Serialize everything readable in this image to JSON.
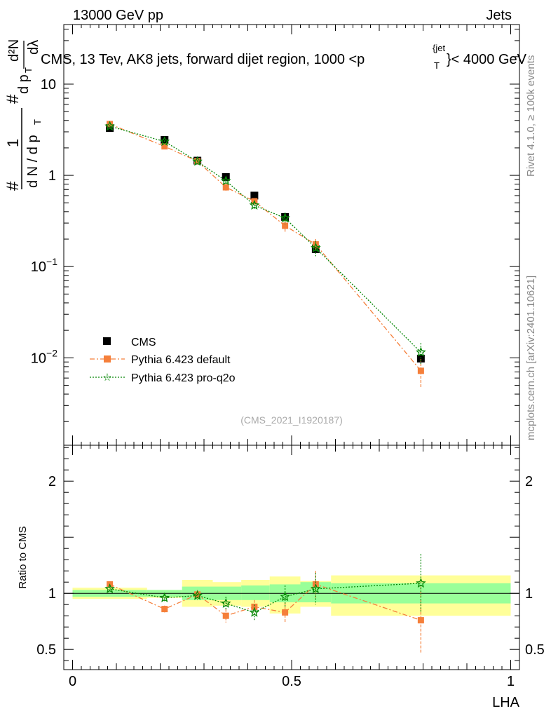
{
  "header": {
    "left": "13000 GeV pp",
    "right": "Jets"
  },
  "title": {
    "main": "CMS, 13 Tev, AK8 jets, forward dijet region, 1000 <p",
    "sub_t": "T",
    "sup_jet": "{jet",
    "tail": "}< 4000 GeV"
  },
  "side": {
    "rivet": "Rivet 4.1.0, ≥ 100k events",
    "mcplots": "mcplots.cern.ch [arXiv:2401.10621]"
  },
  "watermark": "(CMS_2021_I1920187)",
  "ylabel_top": {
    "hash": "#",
    "one": "1",
    "dn": "d N / d p",
    "dn_sub": "T",
    "hash2": "#",
    "dp": "d p",
    "dp_sub": "T",
    "d2n": "d²N",
    "dlambda": "dλ"
  },
  "ylabel_bottom": "Ratio to CMS",
  "xlabel": "LHA",
  "colors": {
    "data": "#000000",
    "default": "#f57f3a",
    "proq2o": "#068806",
    "band_inner": "#99ff99",
    "band_outer": "#ffff99"
  },
  "chart_data": [
    {
      "type": "scatter",
      "title": "CMS, 13 TeV, AK8 jets, forward dijet region, 1000 < pT jet < 4000 GeV",
      "yscale": "log",
      "xlim": [
        -0.02,
        1.02
      ],
      "ylim": [
        0.0011,
        45
      ],
      "y_ticks": [
        {
          "v": 0.01,
          "base": "10",
          "exp": "−2"
        },
        {
          "v": 0.1,
          "base": "10",
          "exp": "−1"
        },
        {
          "v": 1,
          "base": "1",
          "exp": ""
        },
        {
          "v": 10,
          "base": "10",
          "exp": ""
        }
      ],
      "legend_position": "lower-left",
      "series": [
        {
          "name": "CMS",
          "key": "data",
          "x": [
            0.085,
            0.21,
            0.285,
            0.35,
            0.415,
            0.485,
            0.555,
            0.795
          ],
          "y": [
            3.3,
            2.45,
            1.45,
            0.96,
            0.6,
            0.35,
            0.155,
            0.0098
          ],
          "yerr": [
            0,
            0,
            0,
            0,
            0,
            0,
            0,
            0
          ]
        },
        {
          "name": "Pythia 6.423 default",
          "key": "default",
          "x": [
            0.085,
            0.21,
            0.285,
            0.35,
            0.415,
            0.485,
            0.555,
            0.795
          ],
          "y": [
            3.65,
            2.08,
            1.43,
            0.74,
            0.52,
            0.28,
            0.175,
            0.0072
          ],
          "yerr": [
            0.1,
            0.06,
            0.05,
            0.06,
            0.04,
            0.04,
            0.025,
            0.0025
          ]
        },
        {
          "name": "Pythia 6.423 pro-q2o",
          "key": "proq2o",
          "x": [
            0.085,
            0.21,
            0.285,
            0.35,
            0.415,
            0.485,
            0.555,
            0.795
          ],
          "y": [
            3.45,
            2.35,
            1.42,
            0.87,
            0.47,
            0.34,
            0.16,
            0.0115
          ],
          "yerr": [
            0.1,
            0.07,
            0.05,
            0.06,
            0.04,
            0.05,
            0.03,
            0.003
          ]
        }
      ]
    },
    {
      "type": "scatter",
      "xlabel": "LHA",
      "ylabel": "Ratio to CMS",
      "xlim": [
        -0.02,
        1.02
      ],
      "ylim": [
        0.32,
        2.32
      ],
      "x_ticks": [
        0,
        0.5,
        1
      ],
      "x_tick_labels": [
        "0",
        "0.5",
        "1"
      ],
      "y_ticks": [
        0.5,
        1,
        2
      ],
      "y_tick_labels": [
        "0.5",
        "1",
        "2"
      ],
      "bands": [
        {
          "x0": 0.0,
          "x1": 0.17,
          "inner": [
            0.97,
            1.03
          ],
          "outer": [
            0.95,
            1.05
          ]
        },
        {
          "x0": 0.17,
          "x1": 0.25,
          "inner": [
            0.97,
            1.03
          ],
          "outer": [
            0.96,
            1.03
          ]
        },
        {
          "x0": 0.25,
          "x1": 0.32,
          "inner": [
            0.94,
            1.06
          ],
          "outer": [
            0.88,
            1.12
          ]
        },
        {
          "x0": 0.32,
          "x1": 0.385,
          "inner": [
            0.94,
            1.06
          ],
          "outer": [
            0.89,
            1.1
          ]
        },
        {
          "x0": 0.385,
          "x1": 0.45,
          "inner": [
            0.94,
            1.07
          ],
          "outer": [
            0.88,
            1.12
          ]
        },
        {
          "x0": 0.45,
          "x1": 0.52,
          "inner": [
            0.92,
            1.08
          ],
          "outer": [
            0.82,
            1.15
          ]
        },
        {
          "x0": 0.52,
          "x1": 0.59,
          "inner": [
            0.92,
            1.1
          ],
          "outer": [
            0.88,
            1.11
          ]
        },
        {
          "x0": 0.59,
          "x1": 1.0,
          "inner": [
            0.91,
            1.09
          ],
          "outer": [
            0.8,
            1.16
          ]
        }
      ],
      "series": [
        {
          "name": "Pythia 6.423 default",
          "key": "default",
          "x": [
            0.085,
            0.21,
            0.285,
            0.35,
            0.415,
            0.485,
            0.555,
            0.795
          ],
          "y": [
            1.08,
            0.86,
            0.99,
            0.8,
            0.88,
            0.83,
            1.08,
            0.76
          ],
          "yerr": [
            0.02,
            0.03,
            0.04,
            0.06,
            0.06,
            0.09,
            0.12,
            0.3
          ]
        },
        {
          "name": "Pythia 6.423 pro-q2o",
          "key": "proq2o",
          "x": [
            0.085,
            0.21,
            0.285,
            0.35,
            0.415,
            0.485,
            0.555,
            0.795
          ],
          "y": [
            1.04,
            0.96,
            0.98,
            0.91,
            0.83,
            0.97,
            1.04,
            1.09
          ],
          "yerr": [
            0.02,
            0.03,
            0.04,
            0.06,
            0.07,
            0.1,
            0.14,
            0.26
          ]
        }
      ]
    }
  ]
}
